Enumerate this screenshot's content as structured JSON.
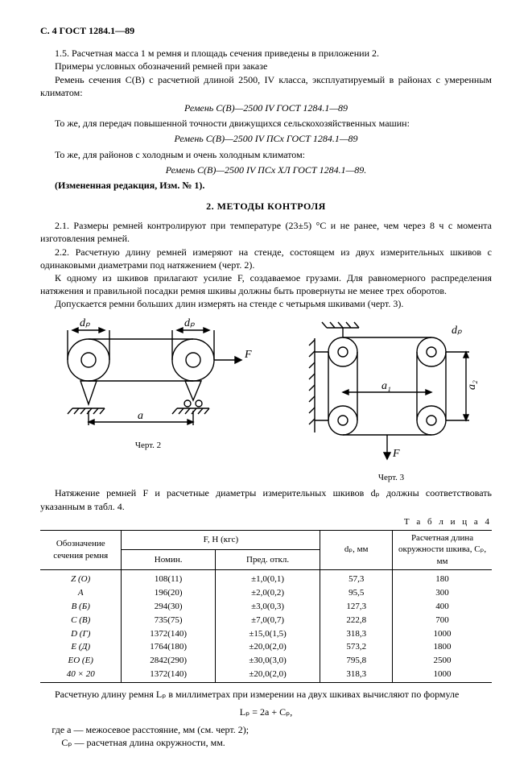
{
  "pageHeader": "С. 4 ГОСТ 1284.1—89",
  "para": {
    "p1_5": "1.5. Расчетная масса 1 м ремня и площадь сечения приведены в приложении 2.",
    "pExamples": "Примеры условных обозначений ремней при заказе",
    "pCb": "Ремень сечения С(В) с расчетной длиной 2500, IV класса, эксплуатируемый в районах с умеренным климатом:",
    "italic1": "Ремень С(В)—2500 IV ГОСТ 1284.1—89",
    "pSame1": "То же, для передач повышенной точности движущихся сельскохозяйственных машин:",
    "italic2": "Ремень С(В)—2500 IV ПСх ГОСТ 1284.1—89",
    "pSame2": "То же, для районов с холодным и очень холодным климатом:",
    "italic3": "Ремень С(В)—2500 IV ПСх ХЛ ГОСТ 1284.1—89.",
    "pChange": "(Измененная редакция, Изм. № 1).",
    "secTitle": "2.  МЕТОДЫ КОНТРОЛЯ",
    "p2_1": "2.1. Размеры ремней контролируют при температуре (23±5) °С и не ранее, чем через 8 ч с момента изготовления ремней.",
    "p2_2": "2.2. Расчетную длину ремней измеряют на стенде, состоящем из двух измерительных шкивов с одинаковыми диаметрами под натяжением (черт. 2).",
    "p2_2b": "К одному из шкивов прилагают усилие F, создаваемое грузами. Для равномерного распределения натяжения и правильной посадки ремня шкивы должны быть провернуты не менее трех оборотов.",
    "p2_2c": "Допускается ремни больших длин измерять на стенде с четырьмя шкивами (черт. 3).",
    "fig2": "Черт. 2",
    "fig3": "Черт. 3",
    "pTension": "Натяжение ремней F и расчетные диаметры измерительных шкивов dₚ должны соответствовать указанным в табл. 4.",
    "tblCap": "Т а б л и ц а  4",
    "pFormulaIntro": "Расчетную длину ремня Lₚ в миллиметрах при измерении на двух шкивах вычисляют по формуле",
    "formula": "Lₚ = 2a + Cₚ,",
    "whereA": "где a —  межосевое расстояние, мм (см. черт. 2);",
    "whereC": "Cₚ —  расчетная длина окружности, мм."
  },
  "figures": {
    "fig2": {
      "labels": {
        "dp1": "dₚ",
        "dp2": "dₚ",
        "F": "F",
        "a": "a"
      },
      "colors": {
        "stroke": "#000",
        "hatch": "#000",
        "fill": "none"
      }
    },
    "fig3": {
      "labels": {
        "dp1": "dₚ",
        "dp2": "dₚ",
        "F": "F",
        "a1": "a₁",
        "a2": "a₂"
      },
      "colors": {
        "stroke": "#000",
        "hatch": "#000",
        "fill": "none"
      }
    }
  },
  "tableHeader": {
    "col1": "Обозначение сечения ремня",
    "col2": "F, Н (кгс)",
    "col2a": "Номин.",
    "col2b": "Пред. откл.",
    "col3": "dₚ, мм",
    "col4": "Расчетная длина окружности шкива, Cₚ, мм"
  },
  "rows": [
    {
      "sec": "Z (O)",
      "nom": "108(11)",
      "dev": "±1,0(0,1)",
      "dp": "57,3",
      "cp": "180"
    },
    {
      "sec": "A",
      "nom": "196(20)",
      "dev": "±2,0(0,2)",
      "dp": "95,5",
      "cp": "300"
    },
    {
      "sec": "B (Б)",
      "nom": "294(30)",
      "dev": "±3,0(0,3)",
      "dp": "127,3",
      "cp": "400"
    },
    {
      "sec": "C (В)",
      "nom": "735(75)",
      "dev": "±7,0(0,7)",
      "dp": "222,8",
      "cp": "700"
    },
    {
      "sec": "D (Г)",
      "nom": "1372(140)",
      "dev": "±15,0(1,5)",
      "dp": "318,3",
      "cp": "1000"
    },
    {
      "sec": "E (Д)",
      "nom": "1764(180)",
      "dev": "±20,0(2,0)",
      "dp": "573,2",
      "cp": "1800"
    },
    {
      "sec": "EO (E)",
      "nom": "2842(290)",
      "dev": "±30,0(3,0)",
      "dp": "795,8",
      "cp": "2500"
    },
    {
      "sec": "40 × 20",
      "nom": "1372(140)",
      "dev": "±20,0(2,0)",
      "dp": "318,3",
      "cp": "1000"
    }
  ]
}
